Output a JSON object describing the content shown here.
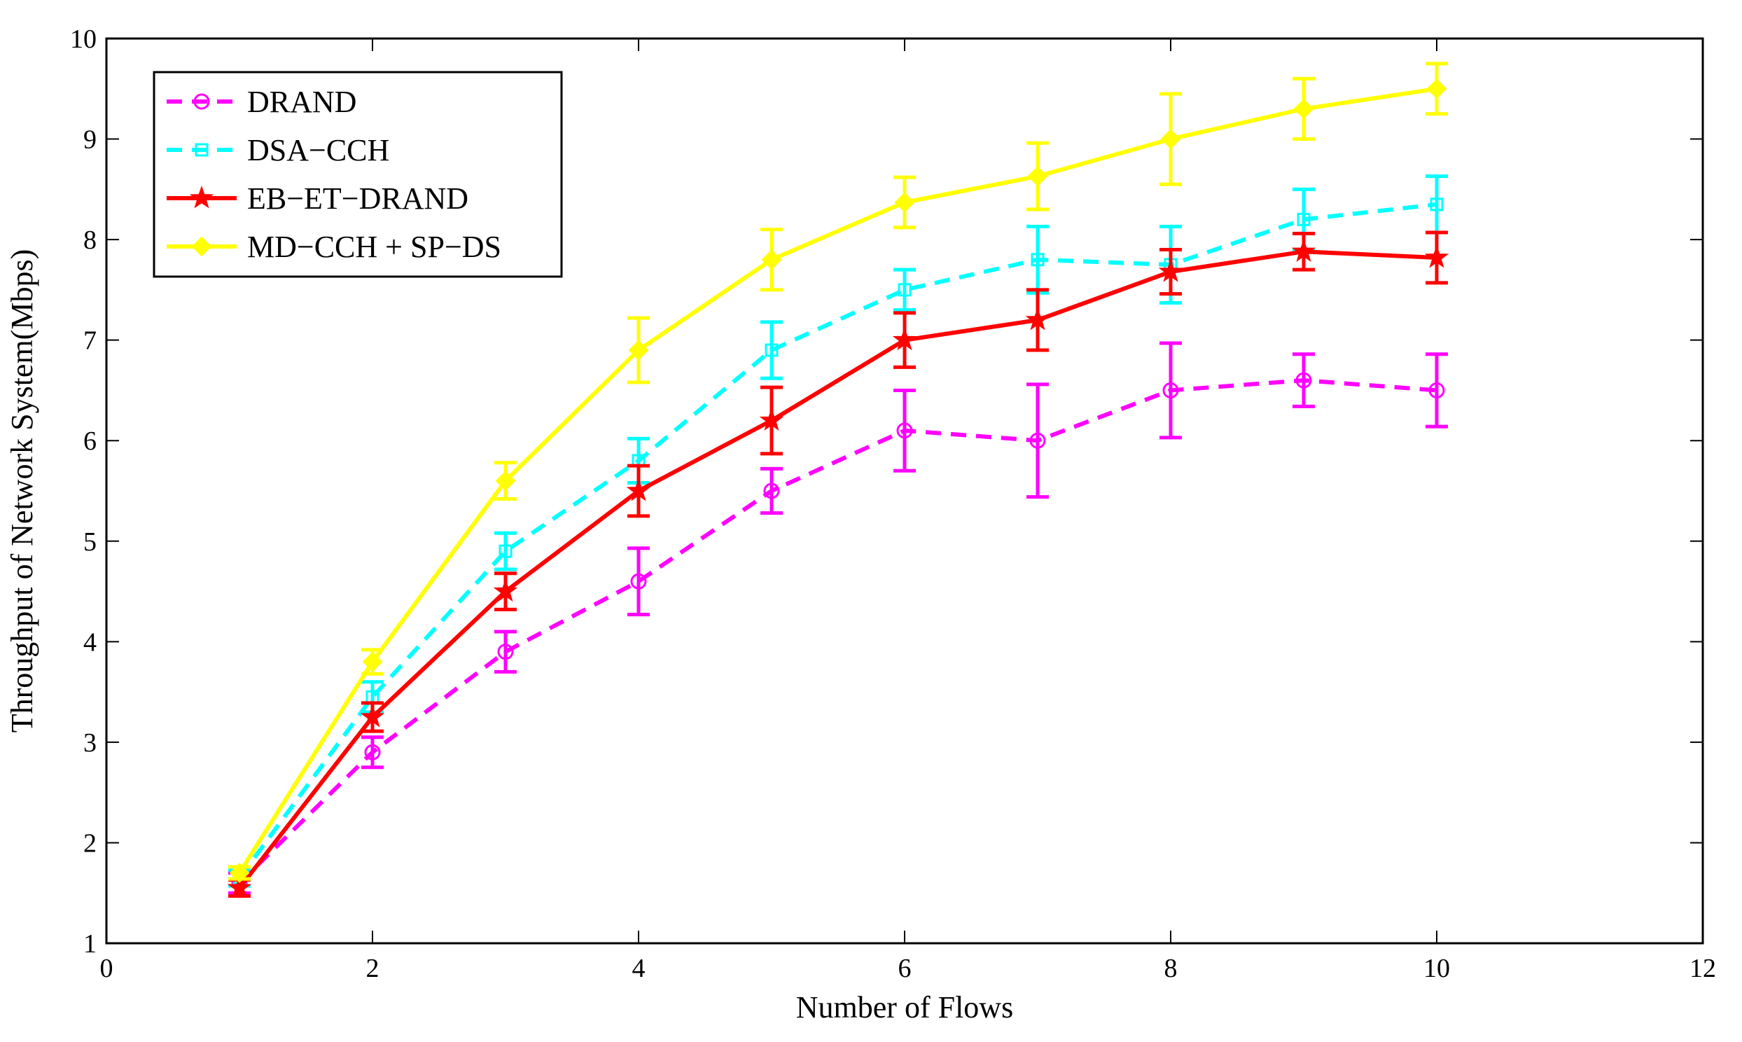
{
  "chart_data": {
    "type": "line",
    "title": "",
    "xlabel": "Number of Flows",
    "ylabel": "Throughput of Network System(Mbps)",
    "xlim": [
      0,
      12
    ],
    "ylim": [
      1,
      10
    ],
    "xticks": [
      0,
      2,
      4,
      6,
      8,
      10,
      12
    ],
    "yticks": [
      1,
      2,
      3,
      4,
      5,
      6,
      7,
      8,
      9,
      10
    ],
    "xtick_labels": [
      "0",
      "2",
      "4",
      "6",
      "8",
      "10",
      "12"
    ],
    "ytick_labels": [
      "1",
      "2",
      "3",
      "4",
      "5",
      "6",
      "7",
      "8",
      "9",
      "10"
    ],
    "grid": false,
    "legend_position": "top-left",
    "x": [
      1,
      2,
      3,
      4,
      5,
      6,
      7,
      8,
      9,
      10
    ],
    "series": [
      {
        "name": "DRAND",
        "color": "#ff00ff",
        "line_style": "dashed",
        "marker": "circle",
        "values": [
          1.6,
          2.9,
          3.9,
          4.6,
          5.5,
          6.1,
          6.0,
          6.5,
          6.6,
          6.5
        ],
        "error": [
          0.1,
          0.15,
          0.2,
          0.33,
          0.22,
          0.4,
          0.56,
          0.47,
          0.26,
          0.36
        ]
      },
      {
        "name": "DSA−CCH",
        "color": "#00ffff",
        "line_style": "dashed",
        "marker": "square",
        "values": [
          1.65,
          3.45,
          4.9,
          5.8,
          6.9,
          7.5,
          7.8,
          7.75,
          8.2,
          8.35
        ],
        "error": [
          0.08,
          0.15,
          0.18,
          0.22,
          0.28,
          0.2,
          0.33,
          0.38,
          0.3,
          0.28
        ]
      },
      {
        "name": "EB−ET−DRAND",
        "color": "#ff0000",
        "line_style": "solid",
        "marker": "star",
        "values": [
          1.55,
          3.25,
          4.5,
          5.5,
          6.2,
          7.0,
          7.2,
          7.68,
          7.88,
          7.82
        ],
        "error": [
          0.08,
          0.14,
          0.18,
          0.25,
          0.33,
          0.27,
          0.3,
          0.22,
          0.18,
          0.25
        ]
      },
      {
        "name": "MD−CCH + SP−DS",
        "color": "#ffff00",
        "line_style": "solid",
        "marker": "diamond",
        "values": [
          1.7,
          3.8,
          5.6,
          6.9,
          7.8,
          8.37,
          8.63,
          9.0,
          9.3,
          9.5
        ],
        "error": [
          0.06,
          0.12,
          0.18,
          0.32,
          0.3,
          0.25,
          0.33,
          0.45,
          0.3,
          0.25
        ]
      }
    ]
  }
}
